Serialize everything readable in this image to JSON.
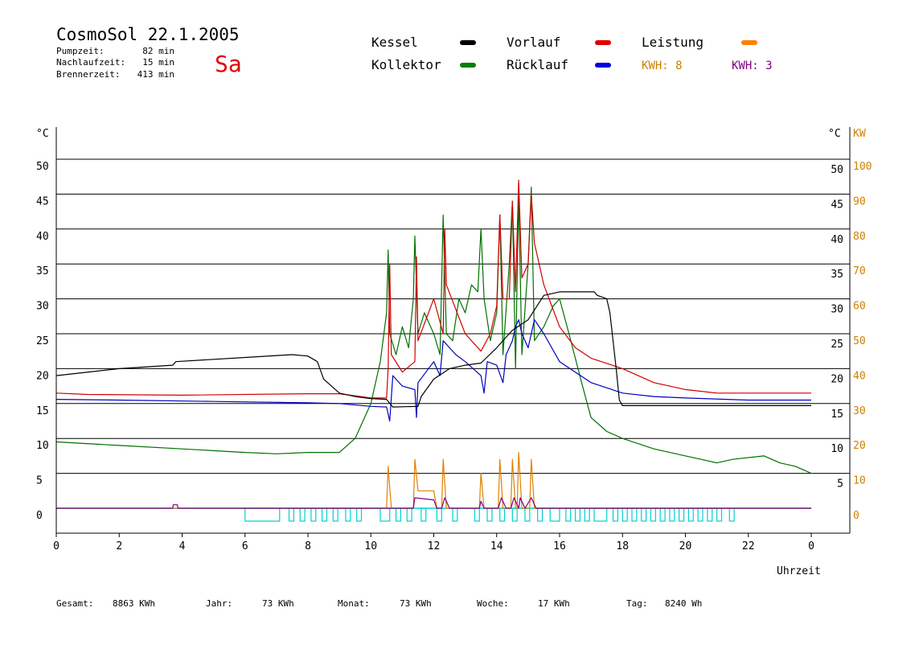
{
  "header": {
    "title": "CosmoSol 22.1.2005",
    "day": "Sa",
    "stats": [
      {
        "label": "Pumpzeit:",
        "value": "82 min"
      },
      {
        "label": "Nachlaufzeit:",
        "value": "15 min"
      },
      {
        "label": "Brennerzeit:",
        "value": "413 min"
      }
    ]
  },
  "legend": [
    {
      "name": "Kessel",
      "color": "#000000"
    },
    {
      "name": "Vorlauf",
      "color": "#e00000"
    },
    {
      "name": "Leistung",
      "color": "#ff8000"
    },
    {
      "name": "Kollektor",
      "color": "#008000"
    },
    {
      "name": "Rücklauf",
      "color": "#0000e0"
    }
  ],
  "kwh": [
    {
      "text": "KWH: 8",
      "color": "#d08000"
    },
    {
      "text": "KWH: 3",
      "color": "#800080"
    }
  ],
  "footer": [
    {
      "label": "Gesamt:",
      "value": "8863 KWh"
    },
    {
      "label": "Jahr:",
      "value": "73 KWh"
    },
    {
      "label": "Monat:",
      "value": "73 KWh"
    },
    {
      "label": "Woche:",
      "value": "17 KWh"
    },
    {
      "label": "Tag:",
      "value": "8240 Wh"
    }
  ],
  "chart_data": {
    "type": "line",
    "xlabel": "Uhrzeit",
    "ylabel_left": "°C",
    "ylabel_right_temp": "°C",
    "ylabel_right_power": "KW",
    "x_ticks": [
      "0",
      "2",
      "4",
      "6",
      "8",
      "10",
      "12",
      "14",
      "16",
      "18",
      "20",
      "22",
      "0"
    ],
    "xlim": [
      0,
      24
    ],
    "ylim": [
      -3.5,
      55
    ],
    "y_ticks_left": [
      "0",
      "5",
      "10",
      "15",
      "20",
      "25",
      "30",
      "35",
      "40",
      "45",
      "50"
    ],
    "y_ticks_right_temp": [
      "5",
      "10",
      "15",
      "20",
      "25",
      "30",
      "35",
      "40",
      "45",
      "50"
    ],
    "y_ticks_right_power": [
      "0",
      "10",
      "20",
      "30",
      "40",
      "50",
      "60",
      "70",
      "80",
      "90",
      "100"
    ],
    "grid": true,
    "colors": {
      "kessel": "#000000",
      "vorlauf": "#d00000",
      "kollektor": "#007000",
      "ruecklauf": "#0000c0",
      "leistung": "#e08000",
      "kwh2": "#800080",
      "pump": "#00d0d0"
    },
    "series": [
      {
        "name": "Kessel",
        "key": "kessel",
        "points": [
          [
            0,
            19.0
          ],
          [
            2,
            20.0
          ],
          [
            3.7,
            20.5
          ],
          [
            3.8,
            21.0
          ],
          [
            6,
            21.6
          ],
          [
            7.5,
            22.0
          ],
          [
            8,
            21.8
          ],
          [
            8.3,
            21.0
          ],
          [
            8.5,
            18.5
          ],
          [
            9,
            16.5
          ],
          [
            9.5,
            16.0
          ],
          [
            10,
            15.7
          ],
          [
            10.5,
            15.6
          ],
          [
            10.7,
            14.5
          ],
          [
            11.5,
            14.6
          ],
          [
            11.6,
            16.0
          ],
          [
            12,
            18.5
          ],
          [
            12.5,
            20.0
          ],
          [
            13,
            20.5
          ],
          [
            13.5,
            20.8
          ],
          [
            14,
            23.0
          ],
          [
            14.5,
            25.5
          ],
          [
            15,
            27.0
          ],
          [
            15.5,
            30.5
          ],
          [
            16,
            31.0
          ],
          [
            16.5,
            31.0
          ],
          [
            17.1,
            31.0
          ],
          [
            17.2,
            30.5
          ],
          [
            17.5,
            30.0
          ],
          [
            17.6,
            28.0
          ],
          [
            17.8,
            20.0
          ],
          [
            17.9,
            15.5
          ],
          [
            18.0,
            14.7
          ],
          [
            24,
            14.7
          ]
        ]
      },
      {
        "name": "Vorlauf",
        "key": "vorlauf",
        "points": [
          [
            0,
            16.5
          ],
          [
            1,
            16.3
          ],
          [
            4,
            16.2
          ],
          [
            8,
            16.4
          ],
          [
            9,
            16.4
          ],
          [
            10,
            15.8
          ],
          [
            10.5,
            15.8
          ],
          [
            10.55,
            20
          ],
          [
            10.6,
            35
          ],
          [
            10.65,
            22
          ],
          [
            11,
            19.5
          ],
          [
            11.4,
            21
          ],
          [
            11.45,
            36
          ],
          [
            11.5,
            24
          ],
          [
            12,
            30
          ],
          [
            12.3,
            25
          ],
          [
            12.35,
            40
          ],
          [
            12.4,
            32
          ],
          [
            13,
            25
          ],
          [
            13.5,
            22.5
          ],
          [
            13.8,
            25
          ],
          [
            14,
            29
          ],
          [
            14.1,
            42
          ],
          [
            14.2,
            30
          ],
          [
            14.4,
            30
          ],
          [
            14.5,
            44
          ],
          [
            14.6,
            31
          ],
          [
            14.7,
            47
          ],
          [
            14.8,
            33
          ],
          [
            15,
            35
          ],
          [
            15.1,
            45
          ],
          [
            15.2,
            38
          ],
          [
            15.5,
            32
          ],
          [
            16,
            26
          ],
          [
            16.5,
            23
          ],
          [
            17,
            21.5
          ],
          [
            18,
            20
          ],
          [
            19,
            18
          ],
          [
            20,
            17
          ],
          [
            21,
            16.5
          ],
          [
            24,
            16.5
          ]
        ]
      },
      {
        "name": "Rücklauf",
        "key": "ruecklauf",
        "points": [
          [
            0,
            15.6
          ],
          [
            2,
            15.5
          ],
          [
            5,
            15.3
          ],
          [
            8,
            15.1
          ],
          [
            9,
            15.0
          ],
          [
            10,
            14.6
          ],
          [
            10.5,
            14.5
          ],
          [
            10.6,
            12.5
          ],
          [
            10.7,
            19
          ],
          [
            11,
            17.5
          ],
          [
            11.4,
            17
          ],
          [
            11.45,
            13
          ],
          [
            11.5,
            18
          ],
          [
            12,
            21
          ],
          [
            12.2,
            19
          ],
          [
            12.3,
            24
          ],
          [
            12.5,
            23
          ],
          [
            12.7,
            22
          ],
          [
            13,
            21
          ],
          [
            13.5,
            19
          ],
          [
            13.6,
            16.5
          ],
          [
            13.7,
            21
          ],
          [
            14,
            20.5
          ],
          [
            14.2,
            18
          ],
          [
            14.3,
            22
          ],
          [
            14.5,
            24
          ],
          [
            14.6,
            26
          ],
          [
            14.7,
            27
          ],
          [
            14.8,
            25
          ],
          [
            15,
            23
          ],
          [
            15.2,
            27
          ],
          [
            15.5,
            25
          ],
          [
            16,
            21
          ],
          [
            17,
            18
          ],
          [
            18,
            16.5
          ],
          [
            19,
            16
          ],
          [
            20,
            15.8
          ],
          [
            22,
            15.5
          ],
          [
            24,
            15.5
          ]
        ]
      },
      {
        "name": "Kollektor",
        "key": "kollektor",
        "points": [
          [
            0,
            9.5
          ],
          [
            2,
            9.0
          ],
          [
            4,
            8.5
          ],
          [
            6,
            8.0
          ],
          [
            7,
            7.8
          ],
          [
            8,
            8.0
          ],
          [
            9,
            8.0
          ],
          [
            9.5,
            10
          ],
          [
            10,
            15
          ],
          [
            10.3,
            21
          ],
          [
            10.5,
            28
          ],
          [
            10.55,
            37
          ],
          [
            10.6,
            25
          ],
          [
            10.8,
            22
          ],
          [
            11,
            26
          ],
          [
            11.2,
            23
          ],
          [
            11.35,
            30
          ],
          [
            11.4,
            39
          ],
          [
            11.5,
            25
          ],
          [
            11.7,
            28
          ],
          [
            12,
            25
          ],
          [
            12.2,
            22
          ],
          [
            12.3,
            42
          ],
          [
            12.4,
            25
          ],
          [
            12.6,
            24
          ],
          [
            12.8,
            30
          ],
          [
            13,
            28
          ],
          [
            13.2,
            32
          ],
          [
            13.4,
            31
          ],
          [
            13.5,
            40
          ],
          [
            13.6,
            30
          ],
          [
            13.8,
            24
          ],
          [
            14,
            28
          ],
          [
            14.1,
            42
          ],
          [
            14.2,
            22
          ],
          [
            14.4,
            35
          ],
          [
            14.5,
            44
          ],
          [
            14.6,
            20
          ],
          [
            14.7,
            45
          ],
          [
            14.8,
            22
          ],
          [
            15.0,
            35
          ],
          [
            15.1,
            46
          ],
          [
            15.2,
            24
          ],
          [
            15.5,
            26
          ],
          [
            15.8,
            29
          ],
          [
            16,
            30
          ],
          [
            16.3,
            25
          ],
          [
            16.7,
            18
          ],
          [
            17,
            13
          ],
          [
            17.5,
            11
          ],
          [
            18,
            10
          ],
          [
            19,
            8.5
          ],
          [
            20,
            7.5
          ],
          [
            20.5,
            7.0
          ],
          [
            21,
            6.5
          ],
          [
            21.5,
            7.0
          ],
          [
            22.5,
            7.5
          ],
          [
            23,
            6.5
          ],
          [
            23.5,
            6.0
          ],
          [
            24,
            5.0
          ]
        ]
      },
      {
        "name": "Leistung",
        "key": "leistung",
        "points": [
          [
            0,
            0
          ],
          [
            10.5,
            0
          ],
          [
            10.55,
            6
          ],
          [
            10.65,
            0
          ],
          [
            11.35,
            0
          ],
          [
            11.4,
            7
          ],
          [
            11.5,
            2.5
          ],
          [
            12,
            2.5
          ],
          [
            12.1,
            0
          ],
          [
            12.25,
            0
          ],
          [
            12.3,
            7
          ],
          [
            12.4,
            0
          ],
          [
            13.45,
            0
          ],
          [
            13.5,
            5
          ],
          [
            13.6,
            0
          ],
          [
            14.05,
            0
          ],
          [
            14.1,
            7
          ],
          [
            14.2,
            0
          ],
          [
            14.45,
            0
          ],
          [
            14.5,
            7
          ],
          [
            14.6,
            0
          ],
          [
            14.65,
            0
          ],
          [
            14.7,
            8
          ],
          [
            14.8,
            0
          ],
          [
            15.05,
            0
          ],
          [
            15.1,
            7
          ],
          [
            15.2,
            0
          ],
          [
            24,
            0
          ]
        ]
      },
      {
        "name": "KWH2",
        "key": "kwh2",
        "points": [
          [
            0,
            0
          ],
          [
            3.7,
            0
          ],
          [
            3.72,
            0.5
          ],
          [
            3.85,
            0.5
          ],
          [
            3.87,
            0
          ],
          [
            11.35,
            0
          ],
          [
            11.4,
            1.5
          ],
          [
            12,
            1.2
          ],
          [
            12.1,
            0
          ],
          [
            12.25,
            0
          ],
          [
            12.35,
            1.5
          ],
          [
            12.5,
            0
          ],
          [
            13.45,
            0
          ],
          [
            13.5,
            1
          ],
          [
            13.6,
            0
          ],
          [
            14.05,
            0
          ],
          [
            14.15,
            1.5
          ],
          [
            14.3,
            0
          ],
          [
            14.45,
            0
          ],
          [
            14.55,
            1.5
          ],
          [
            14.7,
            0
          ],
          [
            14.75,
            1.5
          ],
          [
            14.9,
            0
          ],
          [
            15.1,
            1.5
          ],
          [
            15.25,
            0
          ],
          [
            24,
            0
          ]
        ]
      }
    ],
    "pump_blocks": [
      [
        6.0,
        7.1
      ],
      [
        7.4,
        7.55
      ],
      [
        7.75,
        7.9
      ],
      [
        8.1,
        8.25
      ],
      [
        8.45,
        8.6
      ],
      [
        8.8,
        8.95
      ],
      [
        9.2,
        9.35
      ],
      [
        9.55,
        9.7
      ],
      [
        10.3,
        10.6
      ],
      [
        10.8,
        10.95
      ],
      [
        11.15,
        11.3
      ],
      [
        11.6,
        11.75
      ],
      [
        12.1,
        12.25
      ],
      [
        12.6,
        12.75
      ],
      [
        13.3,
        13.45
      ],
      [
        13.7,
        13.85
      ],
      [
        14.1,
        14.25
      ],
      [
        14.5,
        14.65
      ],
      [
        14.9,
        15.05
      ],
      [
        15.3,
        15.45
      ],
      [
        15.7,
        16.0
      ],
      [
        16.2,
        16.35
      ],
      [
        16.5,
        16.65
      ],
      [
        16.8,
        16.95
      ],
      [
        17.1,
        17.5
      ],
      [
        17.7,
        17.85
      ],
      [
        18.0,
        18.15
      ],
      [
        18.3,
        18.45
      ],
      [
        18.6,
        18.75
      ],
      [
        18.9,
        19.05
      ],
      [
        19.2,
        19.35
      ],
      [
        19.5,
        19.65
      ],
      [
        19.8,
        19.95
      ],
      [
        20.1,
        20.25
      ],
      [
        20.4,
        20.55
      ],
      [
        20.7,
        20.85
      ],
      [
        21.0,
        21.15
      ],
      [
        21.4,
        21.55
      ]
    ]
  }
}
